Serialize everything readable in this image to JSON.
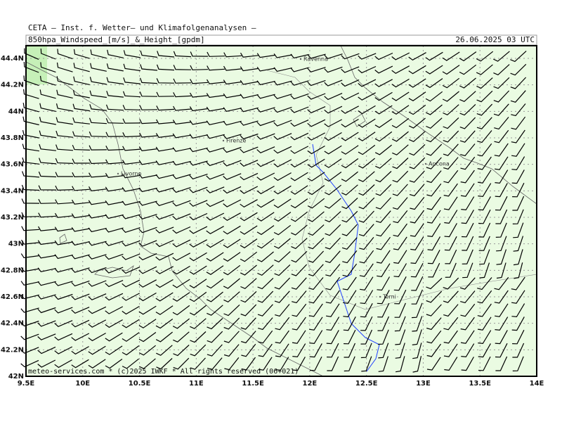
{
  "header": {
    "line1": "CETA — Inst. f. Wetter— und Klimafolgenanalysen —",
    "product": "850hpa_Windspeed_[m/s]_&_Height_[gpdm]",
    "valid": "26.06.2025 03 UTC"
  },
  "map": {
    "lon_ticks": [
      {
        "value": 9.5,
        "label": "9.5E"
      },
      {
        "value": 10,
        "label": "10E"
      },
      {
        "value": 10.5,
        "label": "10.5E"
      },
      {
        "value": 11,
        "label": "11E"
      },
      {
        "value": 11.5,
        "label": "11.5E"
      },
      {
        "value": 12,
        "label": "12E"
      },
      {
        "value": 12.5,
        "label": "12.5E"
      },
      {
        "value": 13,
        "label": "13E"
      },
      {
        "value": 13.5,
        "label": "13.5E"
      },
      {
        "value": 14,
        "label": "14E"
      }
    ],
    "lat_ticks": [
      {
        "value": 42,
        "label": "42N"
      },
      {
        "value": 42.2,
        "label": "42.2N"
      },
      {
        "value": 42.4,
        "label": "42.4N"
      },
      {
        "value": 42.6,
        "label": "42.6N"
      },
      {
        "value": 42.8,
        "label": "42.8N"
      },
      {
        "value": 43,
        "label": "43N"
      },
      {
        "value": 43.2,
        "label": "43.2N"
      },
      {
        "value": 43.4,
        "label": "43.4N"
      },
      {
        "value": 43.6,
        "label": "43.6N"
      },
      {
        "value": 43.8,
        "label": "43.8N"
      },
      {
        "value": 44,
        "label": "44N"
      },
      {
        "value": 44.2,
        "label": "44.2N"
      },
      {
        "value": 44.4,
        "label": "44.4N"
      }
    ],
    "cities": [
      "Ravenna",
      "Firenze",
      "Livorno",
      "Ancona",
      "Terni"
    ]
  },
  "footer": "meteo-services.com * (c)2025 IWKF * All rights reserved (06+021)"
}
